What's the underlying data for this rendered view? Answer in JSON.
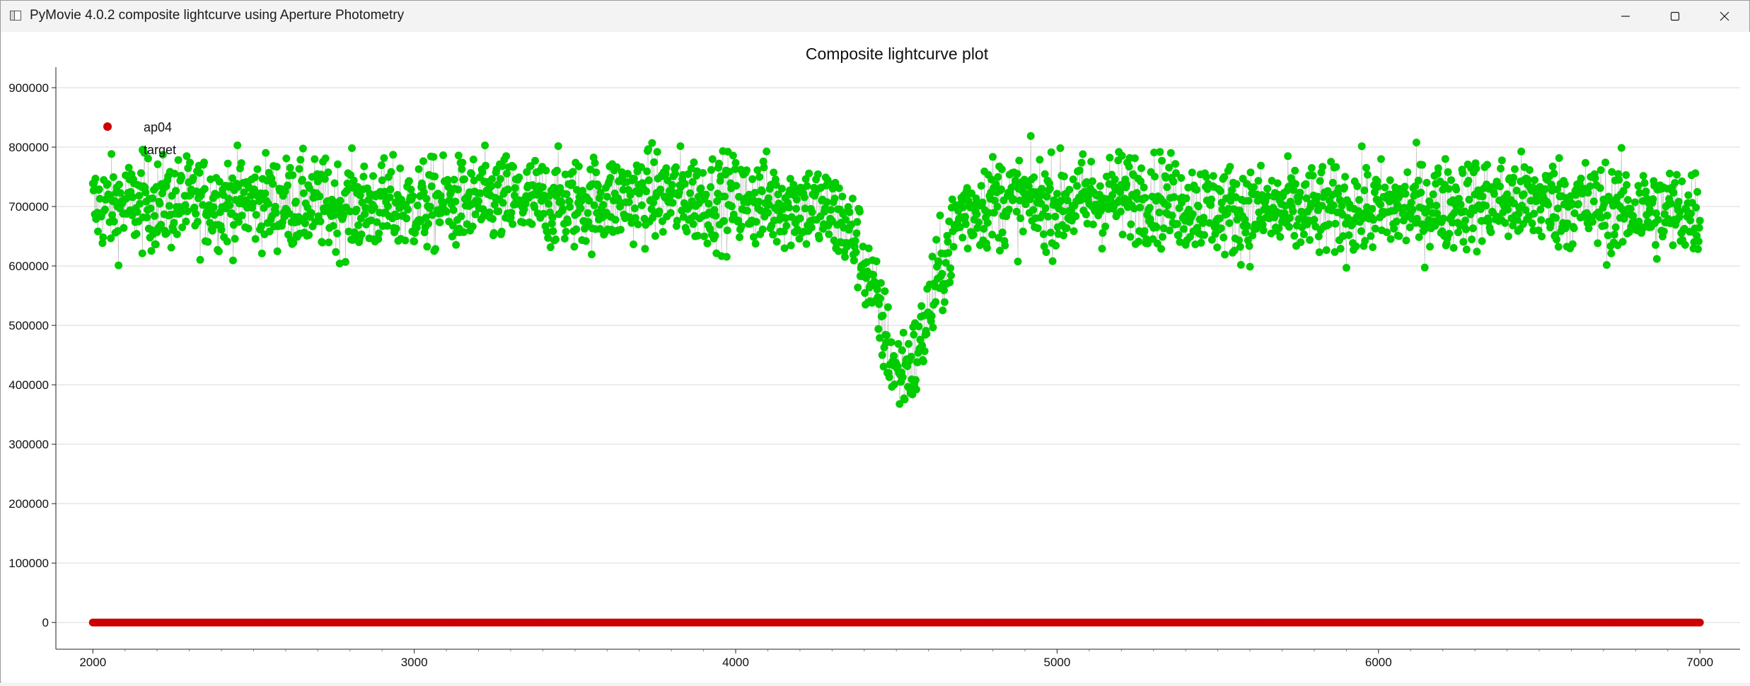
{
  "window": {
    "title": "PyMovie 4.0.2 composite lightcurve using Aperture Photometry",
    "icons": {
      "app": "app-window-icon",
      "minimize": "minimize-icon",
      "maximize": "maximize-icon",
      "close": "close-icon"
    }
  },
  "colors": {
    "target": "#00cc00",
    "ap04": "#cc0000",
    "grid": "#d9d9d9",
    "axis": "#222222"
  },
  "chart_data": {
    "type": "scatter",
    "title": "Composite lightcurve plot",
    "xlabel": "",
    "ylabel": "",
    "xlim": [
      1885,
      7125
    ],
    "ylim": [
      -45000,
      925000
    ],
    "xticks": [
      2000,
      3000,
      4000,
      5000,
      6000,
      7000
    ],
    "xtick_labels": [
      "2000",
      "3000",
      "4000",
      "5000",
      "6000",
      "7000"
    ],
    "yticks": [
      0,
      100000,
      200000,
      300000,
      400000,
      500000,
      600000,
      700000,
      800000,
      900000
    ],
    "ytick_labels": [
      "0",
      "100000",
      "200000",
      "300000",
      "400000",
      "500000",
      "600000",
      "700000",
      "800000",
      "900000"
    ],
    "grid": true,
    "legend_position": "top-left",
    "legend": [
      {
        "label": "ap04",
        "color": "#cc0000"
      },
      {
        "label": "target",
        "color": "#00cc00"
      }
    ],
    "series": [
      {
        "name": "ap04",
        "x": [
          2000,
          7000
        ],
        "y": [
          0,
          0
        ],
        "note": "flat near zero for every frame"
      },
      {
        "name": "target",
        "x": [
          2000,
          2250,
          2500,
          2750,
          3000,
          3250,
          3500,
          3750,
          4000,
          4200,
          4300,
          4380,
          4440,
          4500,
          4560,
          4620,
          4700,
          4800,
          5000,
          5250,
          5500,
          5750,
          6000,
          6250,
          6500,
          6750,
          7000
        ],
        "y": [
          700000,
          705000,
          710000,
          700000,
          700000,
          710000,
          705000,
          720000,
          710000,
          705000,
          690000,
          640000,
          530000,
          420000,
          440000,
          560000,
          690000,
          710000,
          705000,
          720000,
          695000,
          690000,
          695000,
          705000,
          710000,
          695000,
          690000
        ]
      }
    ]
  }
}
